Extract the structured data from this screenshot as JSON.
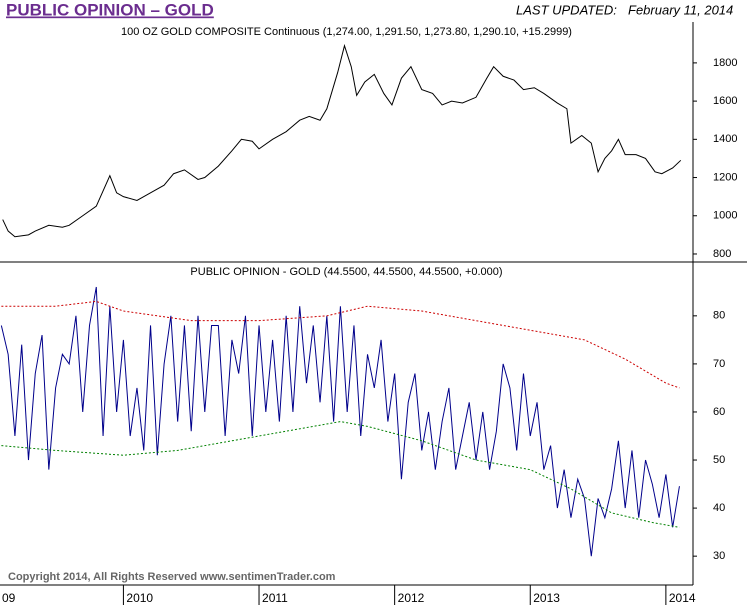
{
  "header": {
    "title": "PUBLIC OPINION – GOLD",
    "updated_label": "LAST UPDATED:",
    "updated_date": "February 11, 2014",
    "footer": "Copyright 2014, All Rights Reserved  www.sentimenTrader.com"
  },
  "chart_data": [
    {
      "type": "line",
      "title": "100 OZ GOLD COMPOSITE Continuous (1,274.00, 1,291.50, 1,273.80, 1,290.10, +15.2999)",
      "xlim": [
        2009.09,
        2014.2
      ],
      "ylim": [
        758,
        2014
      ],
      "yticks": [
        800,
        1000,
        1200,
        1400,
        1600,
        1800
      ],
      "series": [
        {
          "name": "100 OZ GOLD COMPOSITE",
          "color": "#000000",
          "dashed": false,
          "x": [
            2009.11,
            2009.15,
            2009.2,
            2009.3,
            2009.35,
            2009.45,
            2009.55,
            2009.6,
            2009.7,
            2009.8,
            2009.9,
            2009.95,
            2010.0,
            2010.1,
            2010.2,
            2010.3,
            2010.37,
            2010.45,
            2010.55,
            2010.6,
            2010.7,
            2010.8,
            2010.87,
            2010.95,
            2011.0,
            2011.1,
            2011.2,
            2011.3,
            2011.37,
            2011.45,
            2011.5,
            2011.58,
            2011.63,
            2011.68,
            2011.72,
            2011.78,
            2011.85,
            2011.92,
            2011.98,
            2012.05,
            2012.12,
            2012.2,
            2012.28,
            2012.35,
            2012.42,
            2012.5,
            2012.6,
            2012.68,
            2012.73,
            2012.8,
            2012.88,
            2012.95,
            2013.03,
            2013.1,
            2013.2,
            2013.27,
            2013.3,
            2013.38,
            2013.45,
            2013.5,
            2013.55,
            2013.6,
            2013.65,
            2013.7,
            2013.78,
            2013.85,
            2013.92,
            2013.97,
            2014.05,
            2014.11
          ],
          "values": [
            980,
            920,
            890,
            900,
            920,
            950,
            940,
            950,
            1000,
            1050,
            1210,
            1120,
            1100,
            1080,
            1120,
            1160,
            1220,
            1240,
            1190,
            1200,
            1260,
            1340,
            1400,
            1390,
            1350,
            1400,
            1440,
            1500,
            1520,
            1500,
            1560,
            1750,
            1890,
            1780,
            1630,
            1700,
            1740,
            1640,
            1580,
            1720,
            1780,
            1660,
            1640,
            1580,
            1600,
            1590,
            1620,
            1720,
            1780,
            1730,
            1710,
            1660,
            1670,
            1640,
            1590,
            1560,
            1380,
            1420,
            1380,
            1230,
            1300,
            1340,
            1400,
            1320,
            1320,
            1300,
            1230,
            1220,
            1250,
            1290.1
          ]
        }
      ]
    },
    {
      "type": "line",
      "title": "PUBLIC OPINION - GOLD (44.5500, 44.5500, 44.5500, +0.000)",
      "xlim": [
        2009.09,
        2014.2
      ],
      "ylim": [
        24,
        91.2
      ],
      "yticks": [
        30,
        40,
        50,
        60,
        70,
        80
      ],
      "xticks": [
        {
          "value": 2009,
          "label": "09"
        },
        2010,
        2011,
        2012,
        2013,
        2014
      ],
      "series": [
        {
          "name": "PUBLIC OPINION - GOLD",
          "color": "#00008b",
          "dashed": false,
          "x": [
            2009.1,
            2009.15,
            2009.2,
            2009.25,
            2009.3,
            2009.35,
            2009.4,
            2009.45,
            2009.5,
            2009.55,
            2009.6,
            2009.65,
            2009.7,
            2009.75,
            2009.8,
            2009.85,
            2009.9,
            2009.95,
            2010.0,
            2010.05,
            2010.1,
            2010.15,
            2010.2,
            2010.25,
            2010.3,
            2010.35,
            2010.4,
            2010.45,
            2010.5,
            2010.55,
            2010.6,
            2010.65,
            2010.7,
            2010.75,
            2010.8,
            2010.85,
            2010.9,
            2010.95,
            2011.0,
            2011.05,
            2011.1,
            2011.15,
            2011.2,
            2011.25,
            2011.3,
            2011.35,
            2011.4,
            2011.45,
            2011.5,
            2011.55,
            2011.6,
            2011.65,
            2011.7,
            2011.75,
            2011.8,
            2011.85,
            2011.9,
            2011.95,
            2012.0,
            2012.05,
            2012.1,
            2012.15,
            2012.2,
            2012.25,
            2012.3,
            2012.35,
            2012.4,
            2012.45,
            2012.5,
            2012.55,
            2012.6,
            2012.65,
            2012.7,
            2012.75,
            2012.8,
            2012.85,
            2012.9,
            2012.95,
            2013.0,
            2013.05,
            2013.1,
            2013.15,
            2013.2,
            2013.25,
            2013.3,
            2013.35,
            2013.4,
            2013.45,
            2013.5,
            2013.55,
            2013.6,
            2013.65,
            2013.7,
            2013.75,
            2013.8,
            2013.85,
            2013.9,
            2013.95,
            2014.0,
            2014.05,
            2014.1
          ],
          "values": [
            78,
            72,
            55,
            74,
            50,
            68,
            76,
            48,
            65,
            72,
            70,
            80,
            60,
            78,
            86,
            55,
            82,
            60,
            75,
            55,
            65,
            52,
            78,
            51,
            70,
            80,
            58,
            78,
            56,
            80,
            60,
            78,
            78,
            55,
            75,
            68,
            80,
            55,
            78,
            60,
            75,
            58,
            80,
            60,
            82,
            66,
            78,
            62,
            80,
            58,
            82,
            60,
            78,
            55,
            72,
            65,
            75,
            58,
            68,
            46,
            62,
            68,
            52,
            60,
            48,
            58,
            65,
            48,
            55,
            62,
            50,
            60,
            48,
            56,
            70,
            65,
            52,
            68,
            55,
            62,
            48,
            53,
            40,
            48,
            38,
            46,
            42,
            30,
            42,
            38,
            44,
            54,
            40,
            52,
            38,
            50,
            45,
            38,
            47,
            36,
            44.55
          ]
        },
        {
          "name": "Upper band",
          "color": "#cc0000",
          "dashed": true,
          "x": [
            2009.1,
            2009.5,
            2009.8,
            2010.0,
            2010.5,
            2011.0,
            2011.5,
            2011.8,
            2012.2,
            2012.6,
            2013.0,
            2013.4,
            2013.7,
            2014.0,
            2014.1
          ],
          "values": [
            82,
            82,
            83,
            81,
            79,
            79,
            80,
            82,
            81,
            79,
            77,
            75,
            71,
            66,
            65
          ]
        },
        {
          "name": "Lower band",
          "color": "#008000",
          "dashed": true,
          "x": [
            2009.1,
            2009.5,
            2010.0,
            2010.4,
            2010.8,
            2011.2,
            2011.6,
            2011.8,
            2012.2,
            2012.6,
            2013.0,
            2013.3,
            2013.6,
            2013.9,
            2014.1
          ],
          "values": [
            53,
            52,
            51,
            52,
            54,
            56,
            58,
            57,
            54,
            50,
            48,
            44,
            39,
            37,
            36
          ]
        }
      ]
    }
  ]
}
